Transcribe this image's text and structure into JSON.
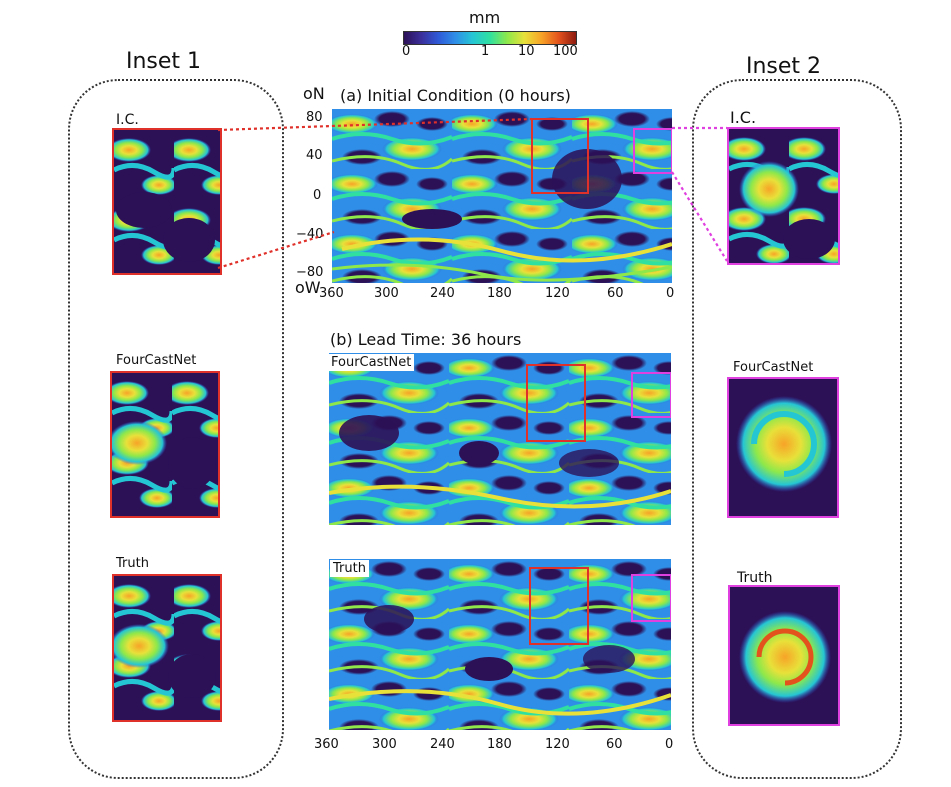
{
  "colorbar": {
    "title": "mm",
    "tick_labels": [
      "0",
      "1",
      "10",
      "100"
    ]
  },
  "insets": {
    "left_title": "Inset 1",
    "right_title": "Inset 2",
    "left_ic_label": "I.C.",
    "right_ic_label": "I.C.",
    "left_fcn_label": "FourCastNet",
    "right_fcn_label": "FourCastNet",
    "left_truth_label": "Truth",
    "right_truth_label": "Truth"
  },
  "panel_a": {
    "title": "(a) Initial Condition (0 hours)",
    "lat_unit": "oN",
    "lon_unit": "oW",
    "lat_ticks": [
      "80",
      "40",
      "0",
      "−40",
      "−80"
    ],
    "lon_ticks": [
      "360",
      "300",
      "240",
      "180",
      "120",
      "60",
      "0"
    ]
  },
  "panel_b": {
    "title": "(b)  Lead Time: 36 hours",
    "fcn_tag": "FourCastNet",
    "truth_tag": "Truth",
    "lon_ticks": [
      "360",
      "300",
      "240",
      "180",
      "120",
      "60",
      "0"
    ]
  },
  "colors": {
    "inset1_frame": "#e0302a",
    "inset2_frame": "#e040e0",
    "field_low": "#2c1157",
    "field_high": "#8c1a10"
  }
}
